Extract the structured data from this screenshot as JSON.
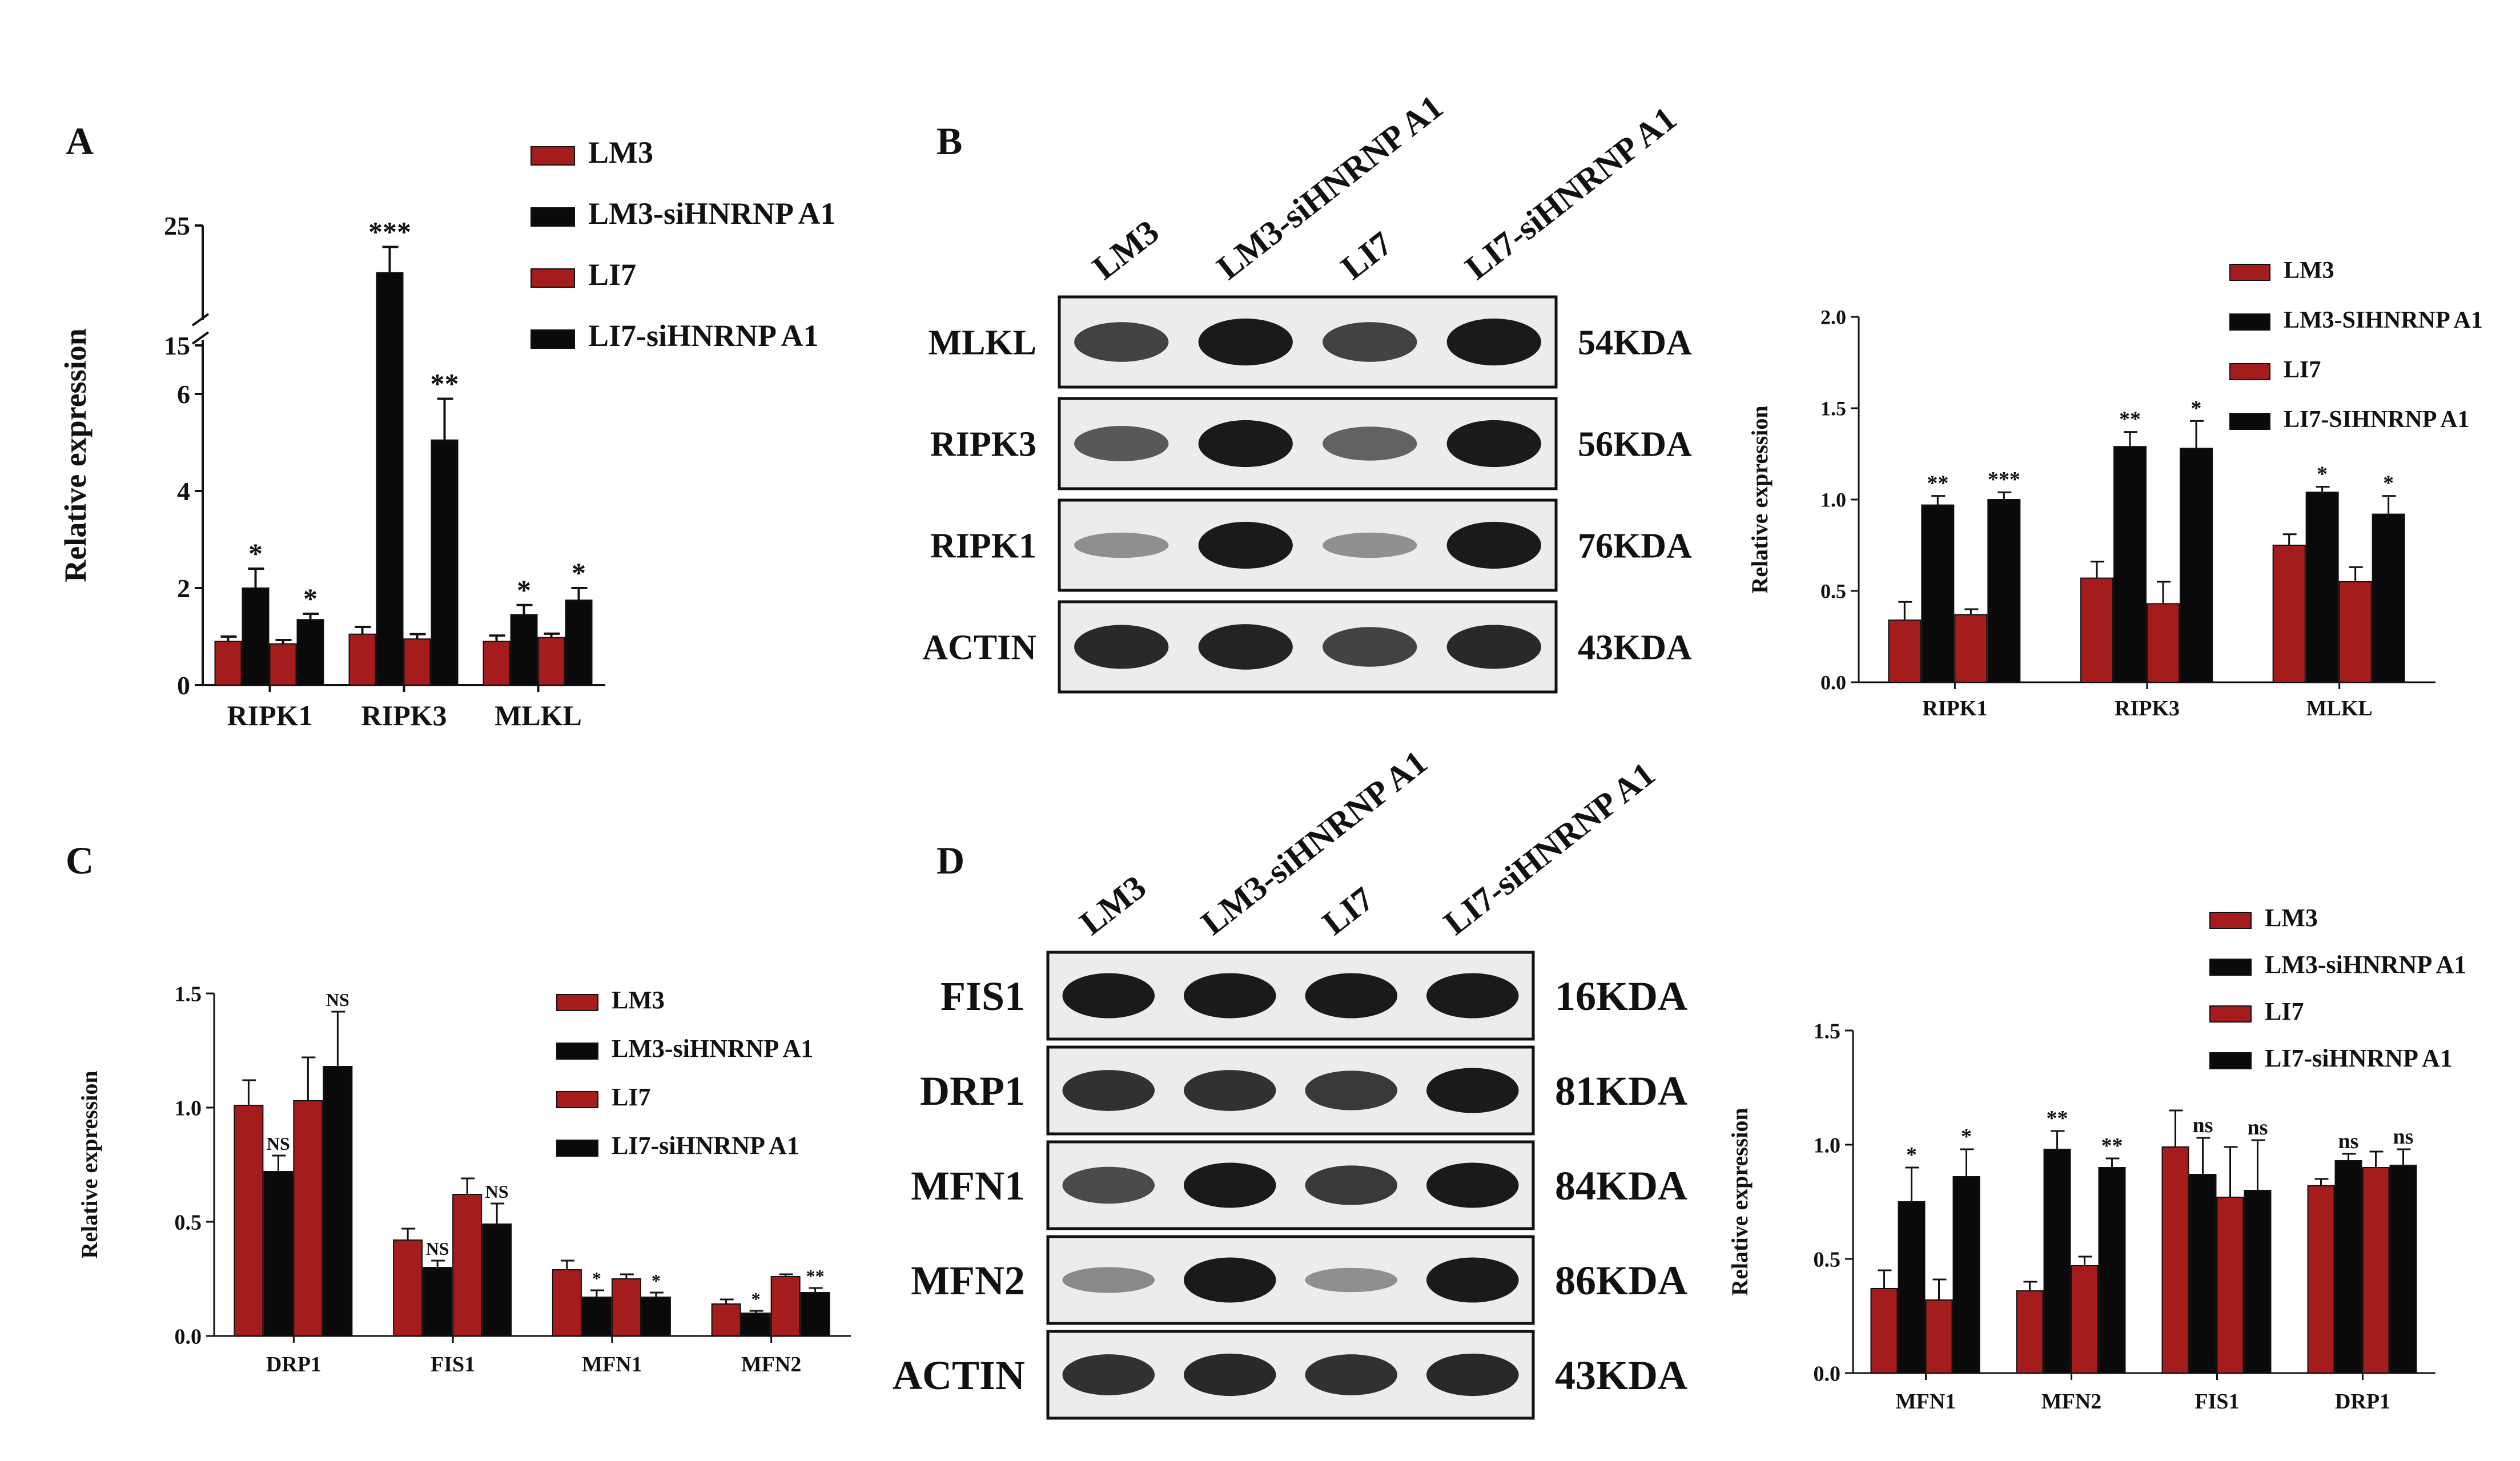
{
  "colors": {
    "red": "#a51c1c",
    "black": "#0a0a0a",
    "blot_bg": "#ececec",
    "band": "#1a1a1a"
  },
  "panels": {
    "A": {
      "letter": "A",
      "legend": [
        "LM3",
        "LM3-siHNRNP A1",
        "LI7",
        "LI7-siHNRNP A1"
      ]
    },
    "B": {
      "letter": "B",
      "lanes": [
        "LM3",
        "LM3-siHNRNP A1",
        "LI7",
        "LI7-siHNRNP A1"
      ],
      "blot": {
        "rows": [
          {
            "protein": "MLKL",
            "size": "54KDA",
            "band_intensity": [
              0.75,
              1.0,
              0.75,
              1.0
            ]
          },
          {
            "protein": "RIPK3",
            "size": "56KDA",
            "band_intensity": [
              0.6,
              1.0,
              0.55,
              1.0
            ]
          },
          {
            "protein": "RIPK1",
            "size": "76KDA",
            "band_intensity": [
              0.25,
              1.0,
              0.25,
              1.0
            ]
          },
          {
            "protein": "ACTIN",
            "size": "43KDA",
            "band_intensity": [
              0.9,
              0.95,
              0.75,
              0.9
            ]
          }
        ]
      },
      "legend": [
        "LM3",
        "LM3-SIHNRNP A1",
        "LI7",
        "LI7-SIHNRNP A1"
      ]
    },
    "C": {
      "letter": "C",
      "legend": [
        "LM3",
        "LM3-siHNRNP A1",
        "LI7",
        "LI7-siHNRNP A1"
      ]
    },
    "D": {
      "letter": "D",
      "lanes": [
        "LM3",
        "LM3-siHNRNP A1",
        "LI7",
        "LI7-siHNRNP A1"
      ],
      "blot": {
        "rows": [
          {
            "protein": "FIS1",
            "size": "16KDA",
            "band_intensity": [
              1.0,
              1.0,
              1.0,
              1.0
            ]
          },
          {
            "protein": "DRP1",
            "size": "81KDA",
            "band_intensity": [
              0.85,
              0.85,
              0.8,
              1.0
            ]
          },
          {
            "protein": "MFN1",
            "size": "84KDA",
            "band_intensity": [
              0.7,
              1.0,
              0.8,
              1.0
            ]
          },
          {
            "protein": "MFN2",
            "size": "86KDA",
            "band_intensity": [
              0.3,
              1.0,
              0.25,
              1.0
            ]
          },
          {
            "protein": "ACTIN",
            "size": "43KDA",
            "band_intensity": [
              0.85,
              0.9,
              0.85,
              0.9
            ]
          }
        ]
      },
      "legend": [
        "LM3",
        "LM3-siHNRNP A1",
        "LI7",
        "LI7-siHNRNP A1"
      ]
    }
  },
  "chart_data": [
    {
      "id": "A",
      "type": "bar",
      "ylabel": "Relative expression",
      "categories": [
        "RIPK1",
        "RIPK3",
        "MLKL"
      ],
      "y_axis": {
        "broken": true,
        "lower": [
          0,
          7
        ],
        "upper": [
          15,
          25
        ],
        "ticks_lower": [
          "0",
          "2",
          "4",
          "6"
        ],
        "ticks_upper": [
          "15",
          "25"
        ]
      },
      "series": [
        {
          "name": "LM3",
          "values": [
            0.9,
            1.05,
            0.9
          ],
          "errors": [
            0.1,
            0.15,
            0.12
          ]
        },
        {
          "name": "LM3-siHNRNP A1",
          "values": [
            2.0,
            19.5,
            1.45
          ],
          "errors": [
            0.4,
            3.0,
            0.2
          ]
        },
        {
          "name": "LI7",
          "values": [
            0.85,
            0.95,
            0.98
          ],
          "errors": [
            0.08,
            0.1,
            0.08
          ]
        },
        {
          "name": "LI7-siHNRNP A1",
          "values": [
            1.35,
            5.05,
            1.75
          ],
          "errors": [
            0.12,
            0.85,
            0.25
          ]
        }
      ],
      "annotations": [
        [
          "",
          "*",
          "",
          "*"
        ],
        [
          "",
          "***",
          "",
          "**"
        ],
        [
          "",
          "*",
          "",
          "*"
        ]
      ]
    },
    {
      "id": "B",
      "type": "bar",
      "ylabel": "Relative expression",
      "categories": [
        "RIPK1",
        "RIPK3",
        "MLKL"
      ],
      "ylim": [
        0,
        2.0
      ],
      "ticks": [
        "0.0",
        "0.5",
        "1.0",
        "1.5",
        "2.0"
      ],
      "series": [
        {
          "name": "LM3",
          "values": [
            0.34,
            0.57,
            0.75
          ],
          "errors": [
            0.1,
            0.09,
            0.06
          ]
        },
        {
          "name": "LM3-SIHNRNP A1",
          "values": [
            0.97,
            1.29,
            1.04
          ],
          "errors": [
            0.05,
            0.08,
            0.03
          ]
        },
        {
          "name": "LI7",
          "values": [
            0.37,
            0.43,
            0.55
          ],
          "errors": [
            0.03,
            0.12,
            0.08
          ]
        },
        {
          "name": "LI7-SIHNRNP A1",
          "values": [
            1.0,
            1.28,
            0.92
          ],
          "errors": [
            0.04,
            0.15,
            0.1
          ]
        }
      ],
      "annotations": [
        [
          "",
          "**",
          "",
          "***"
        ],
        [
          "",
          "**",
          "",
          "*"
        ],
        [
          "",
          "*",
          "",
          "*"
        ]
      ]
    },
    {
      "id": "C",
      "type": "bar",
      "ylabel": "Relative expression",
      "categories": [
        "DRP1",
        "FIS1",
        "MFN1",
        "MFN2"
      ],
      "ylim": [
        0,
        1.5
      ],
      "ticks": [
        "0.0",
        "0.5",
        "1.0",
        "1.5"
      ],
      "series": [
        {
          "name": "LM3",
          "values": [
            1.01,
            0.42,
            0.29,
            0.14
          ],
          "errors": [
            0.11,
            0.05,
            0.04,
            0.02
          ]
        },
        {
          "name": "LM3-siHNRNP A1",
          "values": [
            0.72,
            0.3,
            0.17,
            0.1
          ],
          "errors": [
            0.07,
            0.03,
            0.03,
            0.01
          ]
        },
        {
          "name": "LI7",
          "values": [
            1.03,
            0.62,
            0.25,
            0.26
          ],
          "errors": [
            0.19,
            0.07,
            0.02,
            0.01
          ]
        },
        {
          "name": "LI7-siHNRNP A1",
          "values": [
            1.18,
            0.49,
            0.17,
            0.19
          ],
          "errors": [
            0.24,
            0.09,
            0.02,
            0.02
          ]
        }
      ],
      "annotations": [
        [
          "",
          "NS",
          "",
          "NS"
        ],
        [
          "",
          "NS",
          "",
          "NS"
        ],
        [
          "",
          "*",
          "",
          "*"
        ],
        [
          "",
          "*",
          "",
          "**"
        ]
      ]
    },
    {
      "id": "D",
      "type": "bar",
      "ylabel": "Relative expression",
      "categories": [
        "MFN1",
        "MFN2",
        "FIS1",
        "DRP1"
      ],
      "ylim": [
        0,
        1.5
      ],
      "ticks": [
        "0.0",
        "0.5",
        "1.0",
        "1.5"
      ],
      "series": [
        {
          "name": "LM3",
          "values": [
            0.37,
            0.36,
            0.99,
            0.82
          ],
          "errors": [
            0.08,
            0.04,
            0.16,
            0.03
          ]
        },
        {
          "name": "LM3-siHNRNP A1",
          "values": [
            0.75,
            0.98,
            0.87,
            0.93
          ],
          "errors": [
            0.15,
            0.08,
            0.16,
            0.03
          ]
        },
        {
          "name": "LI7",
          "values": [
            0.32,
            0.47,
            0.77,
            0.9
          ],
          "errors": [
            0.09,
            0.04,
            0.22,
            0.07
          ]
        },
        {
          "name": "LI7-siHNRNP A1",
          "values": [
            0.86,
            0.9,
            0.8,
            0.91
          ],
          "errors": [
            0.12,
            0.04,
            0.22,
            0.07
          ]
        }
      ],
      "annotations": [
        [
          "",
          "*",
          "",
          "*"
        ],
        [
          "",
          "**",
          "",
          "**"
        ],
        [
          "",
          "ns",
          "",
          "ns"
        ],
        [
          "",
          "ns",
          "",
          "ns"
        ]
      ]
    }
  ]
}
